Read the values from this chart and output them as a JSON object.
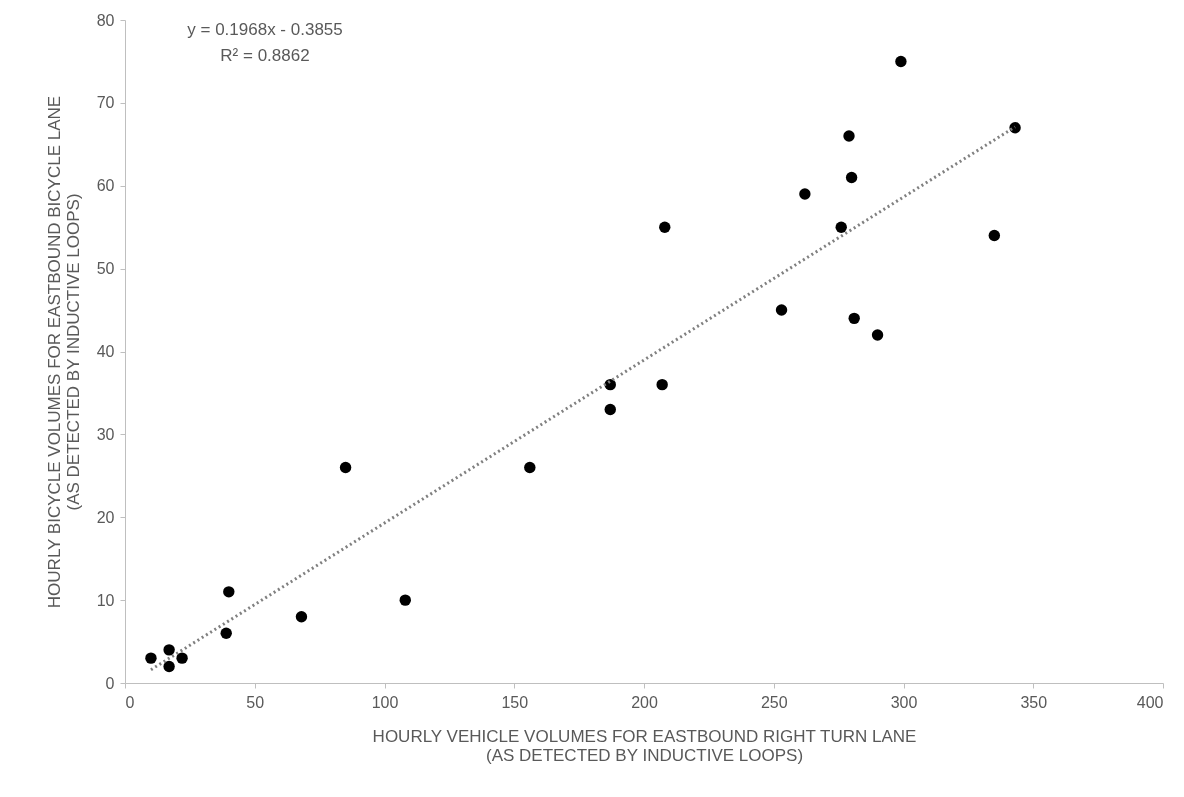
{
  "chart_data": {
    "type": "scatter",
    "xlabel": "HOURLY VEHICLE VOLUMES FOR EASTBOUND RIGHT TURN LANE\n(AS DETECTED BY INDUCTIVE LOOPS)",
    "ylabel": "HOURLY BICYCLE VOLUMES FOR EASTBOUND BICYCLE LANE\n(AS DETECTED BY INDUCTIVE LOOPS)",
    "xlim": [
      0,
      400
    ],
    "xticks": [
      0,
      50,
      100,
      150,
      200,
      250,
      300,
      350,
      400
    ],
    "ylim": [
      0,
      80
    ],
    "yticks": [
      0,
      10,
      20,
      30,
      40,
      50,
      60,
      70,
      80
    ],
    "grid": false,
    "series": [
      {
        "color": "#000000",
        "marker": "circle",
        "x": [
          10,
          17,
          17,
          22,
          39,
          40,
          68,
          85,
          108,
          156,
          187,
          187,
          207,
          208,
          253,
          262,
          276,
          279,
          280,
          281,
          290,
          299,
          335,
          343
        ],
        "values": [
          3,
          4,
          2,
          3,
          6,
          11,
          8,
          26,
          10,
          26,
          36,
          33,
          36,
          55,
          45,
          59,
          55,
          66,
          61,
          44,
          42,
          75,
          54,
          67
        ]
      },
      {
        "type": "line",
        "color": "#808080",
        "line_style": "dotted",
        "marker": "none",
        "x": [
          10,
          343
        ],
        "values": [
          1.6,
          67.1
        ]
      }
    ],
    "annotations": [
      "y = 0.1968x - 0.3855",
      "R² = 0.8862"
    ]
  }
}
